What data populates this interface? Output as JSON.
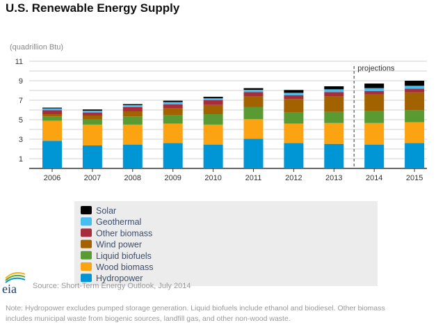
{
  "chart_data": {
    "type": "bar",
    "stacked": true,
    "title": "U.S. Renewable Energy Supply",
    "ylabel": "(quadrillion Btu)",
    "xlabel": "",
    "ylim": [
      0,
      11
    ],
    "yticks": [
      1,
      3,
      5,
      7,
      9,
      11
    ],
    "grid": true,
    "categories": [
      "2006",
      "2007",
      "2008",
      "2009",
      "2010",
      "2011",
      "2012",
      "2013",
      "2014",
      "2015"
    ],
    "annotation": {
      "text": "projections",
      "from_category": "2014"
    },
    "legend_placement": "bottom",
    "series": [
      {
        "name": "Hydropower",
        "color": "#0096d6",
        "values": [
          2.84,
          2.36,
          2.45,
          2.6,
          2.45,
          3.05,
          2.6,
          2.52,
          2.45,
          2.6
        ]
      },
      {
        "name": "Wood biomass",
        "color": "#fca311",
        "values": [
          2.06,
          2.14,
          2.05,
          2.0,
          2.05,
          2.0,
          2.0,
          2.14,
          2.21,
          2.14
        ]
      },
      {
        "name": "Liquid biofuels",
        "color": "#5a9a32",
        "values": [
          0.44,
          0.52,
          0.84,
          0.85,
          1.07,
          1.24,
          1.14,
          1.15,
          1.24,
          1.24
        ]
      },
      {
        "name": "Wind power",
        "color": "#a36200",
        "values": [
          0.23,
          0.41,
          0.52,
          0.71,
          0.95,
          1.11,
          1.38,
          1.59,
          1.7,
          1.83
        ]
      },
      {
        "name": "Other biomass",
        "color": "#a72c3c",
        "values": [
          0.41,
          0.31,
          0.43,
          0.41,
          0.48,
          0.44,
          0.4,
          0.44,
          0.35,
          0.38
        ]
      },
      {
        "name": "Geothermal",
        "color": "#45bff2",
        "values": [
          0.18,
          0.19,
          0.21,
          0.24,
          0.2,
          0.23,
          0.24,
          0.28,
          0.29,
          0.29
        ]
      },
      {
        "name": "Solar",
        "color": "#000000",
        "values": [
          0.08,
          0.12,
          0.1,
          0.14,
          0.15,
          0.17,
          0.29,
          0.31,
          0.47,
          0.52
        ]
      }
    ]
  },
  "source": "Source: Short-Term Energy Outlook, July 2014",
  "logo": "eia",
  "note_lines": [
    "Note: Hydropower excludes pumped storage generation. Liquid biofuels include ethanol and biodiesel. Other biomass",
    "includes municipal waste from biogenic sources, landfill gas, and other non-wood waste."
  ]
}
